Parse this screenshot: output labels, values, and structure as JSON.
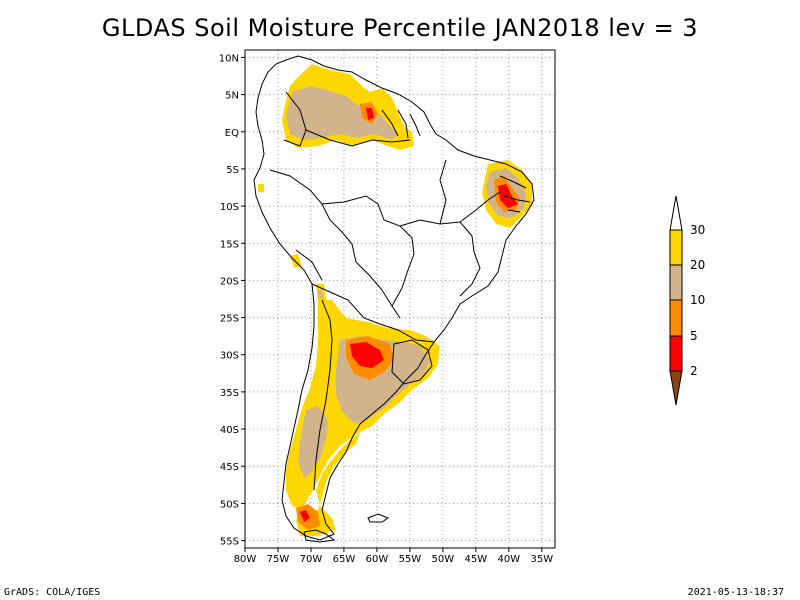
{
  "title": "GLDAS Soil Moisture Percentile JAN2018 lev = 3",
  "footer": {
    "left": "GrADS: COLA/IGES",
    "right": "2021-05-13-18:37"
  },
  "map": {
    "lon_ticks": [
      "80W",
      "75W",
      "70W",
      "65W",
      "60W",
      "55W",
      "50W",
      "45W",
      "40W",
      "35W"
    ],
    "lat_ticks": [
      "10N",
      "5N",
      "EQ",
      "5S",
      "10S",
      "15S",
      "20S",
      "25S",
      "30S",
      "35S",
      "40S",
      "45S",
      "50S",
      "55S"
    ],
    "lon_range": [
      -80,
      -33
    ],
    "lat_range": [
      -56,
      11
    ],
    "gridlines": true,
    "region": "South America"
  },
  "colorbar": {
    "labels": [
      "30",
      "20",
      "10",
      "5",
      "2"
    ],
    "colors": {
      "above_30": "#ffffff",
      "20_30": "#ffd700",
      "10_20": "#d2b48c",
      "5_10": "#ff8c00",
      "2_5": "#ff0000",
      "below_2": "#8b4513"
    }
  }
}
